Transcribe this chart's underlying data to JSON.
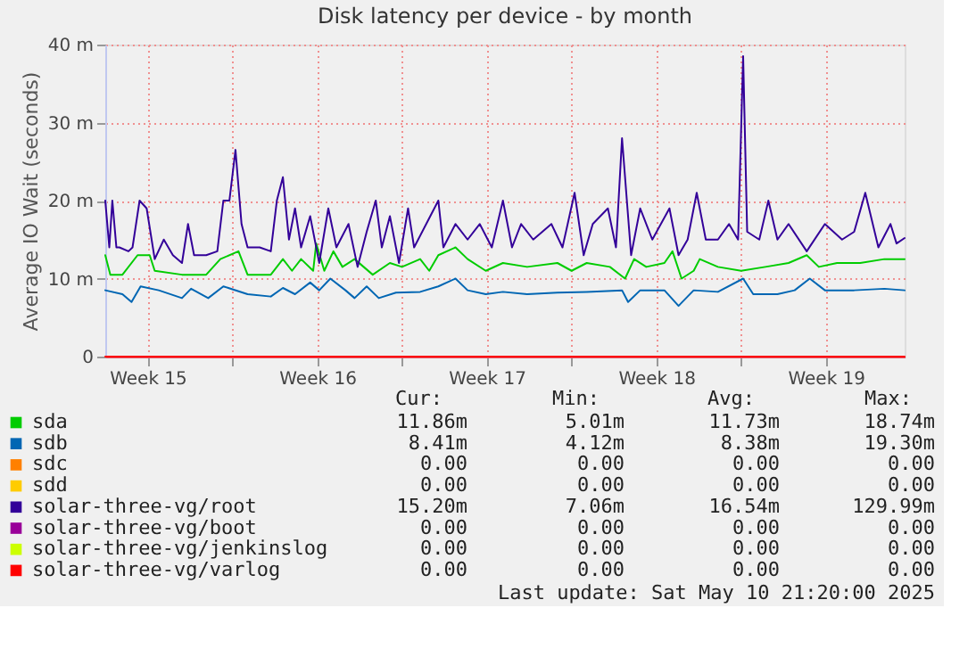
{
  "chart_data": {
    "type": "line",
    "title": "Disk latency per device - by month",
    "ylabel": "Average IO Wait (seconds)",
    "xlim": [
      "2025-04-08T18:00",
      "2025-05-11T18:00"
    ],
    "xticks": [
      {
        "value": "2025-04-10T12:00",
        "label": "Week 15"
      },
      {
        "value": "2025-04-14T00:00",
        "label": null
      },
      {
        "value": "2025-04-17T12:00",
        "label": "Week 16"
      },
      {
        "value": "2025-04-21T00:00",
        "label": null
      },
      {
        "value": "2025-04-24T12:00",
        "label": "Week 17"
      },
      {
        "value": "2025-04-28T00:00",
        "label": null
      },
      {
        "value": "2025-05-01T12:00",
        "label": "Week 18"
      },
      {
        "value": "2025-05-05T00:00",
        "label": null
      },
      {
        "value": "2025-05-08T12:00",
        "label": "Week 19"
      }
    ],
    "ylim": [
      0,
      40
    ],
    "yticks": [
      0,
      {
        "value": 10,
        "label": "10 m"
      },
      {
        "value": 20,
        "label": "20 m"
      },
      {
        "value": 30,
        "label": "30 m"
      },
      {
        "value": 40,
        "label": "40 m"
      }
    ],
    "grid": true,
    "legend": "bottom",
    "line_style": "solid",
    "marker": "none",
    "series": [
      {
        "name": "sda",
        "color": "#00cc00",
        "x": [
          "2025-04-08T18:00",
          "2025-04-08T23:00",
          "2025-04-09T11:00",
          "2025-04-10T02:00",
          "2025-04-10T14:00",
          "2025-04-10T19:00",
          "2025-04-11T22:00",
          "2025-04-12T22:00",
          "2025-04-13T12:00",
          "2025-04-14T06:00",
          "2025-04-14T15:00",
          "2025-04-15T14:00",
          "2025-04-16T02:00",
          "2025-04-16T11:00",
          "2025-04-16T20:00",
          "2025-04-17T08:00",
          "2025-04-17T11:00",
          "2025-04-17T19:00",
          "2025-04-18T04:00",
          "2025-04-18T13:00",
          "2025-04-19T01:00",
          "2025-04-19T19:00",
          "2025-04-20T12:00",
          "2025-04-21T00:00",
          "2025-04-21T18:00",
          "2025-04-22T03:00",
          "2025-04-22T12:00",
          "2025-04-23T05:00",
          "2025-04-23T17:00",
          "2025-04-24T11:00",
          "2025-04-25T04:00",
          "2025-04-26T04:00",
          "2025-04-27T10:00",
          "2025-04-28T00:00",
          "2025-04-28T15:00",
          "2025-04-29T14:00",
          "2025-04-30T05:00",
          "2025-04-30T14:00",
          "2025-05-01T02:00",
          "2025-05-01T20:00",
          "2025-05-02T04:00",
          "2025-05-02T13:00",
          "2025-05-03T01:00",
          "2025-05-03T07:00",
          "2025-05-04T01:00",
          "2025-05-05T00:00",
          "2025-05-06T00:00",
          "2025-05-06T23:00",
          "2025-05-07T17:00",
          "2025-05-08T05:00",
          "2025-05-08T23:00",
          "2025-05-09T22:00",
          "2025-05-10T22:00",
          "2025-05-11T18:00"
        ],
        "values": [
          13,
          10.5,
          10.5,
          13,
          13,
          11,
          10.5,
          10.5,
          12.5,
          13.5,
          10.5,
          10.5,
          12.5,
          11,
          12.5,
          11,
          14.5,
          11,
          13.5,
          11.5,
          12.5,
          10.5,
          12,
          11.5,
          12.5,
          11,
          13,
          14,
          12.5,
          11,
          12,
          11.5,
          12,
          11,
          12,
          11.5,
          10,
          12.5,
          11.5,
          12,
          13.5,
          10,
          11,
          12.5,
          11.5,
          11,
          11.5,
          12,
          13,
          11.5,
          12,
          12,
          12.5,
          12.5
        ]
      },
      {
        "name": "sdb",
        "color": "#0066b3",
        "x": [
          "2025-04-08T18:00",
          "2025-04-09T11:00",
          "2025-04-09T20:00",
          "2025-04-10T05:00",
          "2025-04-10T23:00",
          "2025-04-11T22:00",
          "2025-04-12T07:00",
          "2025-04-13T00:00",
          "2025-04-13T15:00",
          "2025-04-14T15:00",
          "2025-04-15T14:00",
          "2025-04-16T02:00",
          "2025-04-16T14:00",
          "2025-04-17T05:00",
          "2025-04-17T14:00",
          "2025-04-18T01:00",
          "2025-04-18T16:00",
          "2025-04-19T01:00",
          "2025-04-19T13:00",
          "2025-04-20T01:00",
          "2025-04-20T18:00",
          "2025-04-21T18:00",
          "2025-04-22T12:00",
          "2025-04-23T05:00",
          "2025-04-23T17:00",
          "2025-04-24T11:00",
          "2025-04-25T04:00",
          "2025-04-26T04:00",
          "2025-04-27T10:00",
          "2025-04-28T15:00",
          "2025-04-30T02:00",
          "2025-04-30T08:00",
          "2025-04-30T20:00",
          "2025-05-01T20:00",
          "2025-05-02T10:00",
          "2025-05-03T01:00",
          "2025-05-04T01:00",
          "2025-05-05T02:00",
          "2025-05-05T12:00",
          "2025-05-06T12:00",
          "2025-05-07T05:00",
          "2025-05-07T20:00",
          "2025-05-08T11:00",
          "2025-05-09T16:00",
          "2025-05-10T22:00",
          "2025-05-11T18:00"
        ],
        "values": [
          8.5,
          8,
          7,
          9,
          8.5,
          7.5,
          8.7,
          7.5,
          9,
          8,
          7.7,
          8.8,
          8,
          9.5,
          8.5,
          10,
          8.5,
          7.5,
          9,
          7.5,
          8.2,
          8.3,
          9,
          10,
          8.5,
          8,
          8.3,
          8,
          8.2,
          8.3,
          8.5,
          7,
          8.5,
          8.5,
          6.5,
          8.5,
          8.3,
          10,
          8,
          8,
          8.5,
          10,
          8.5,
          8.5,
          8.7,
          8.5
        ]
      },
      {
        "name": "sdc",
        "color": "#ff8000"
      },
      {
        "name": "sdd",
        "color": "#ffcc00"
      },
      {
        "name": "solar-three-vg/root",
        "color": "#330099",
        "x": [
          "2025-04-08T18:00",
          "2025-04-08T22:00",
          "2025-04-09T01:00",
          "2025-04-09T05:00",
          "2025-04-09T08:00",
          "2025-04-09T17:00",
          "2025-04-09T21:00",
          "2025-04-10T04:00",
          "2025-04-10T11:00",
          "2025-04-10T19:00",
          "2025-04-11T04:00",
          "2025-04-11T13:00",
          "2025-04-11T22:00",
          "2025-04-12T04:00",
          "2025-04-12T10:00",
          "2025-04-12T22:00",
          "2025-04-13T09:00",
          "2025-04-13T15:00",
          "2025-04-13T21:00",
          "2025-04-14T03:00",
          "2025-04-14T09:00",
          "2025-04-14T15:00",
          "2025-04-15T03:00",
          "2025-04-15T14:00",
          "2025-04-15T20:00",
          "2025-04-16T02:00",
          "2025-04-16T08:00",
          "2025-04-16T14:00",
          "2025-04-16T20:00",
          "2025-04-17T05:00",
          "2025-04-17T14:00",
          "2025-04-17T23:00",
          "2025-04-18T07:00",
          "2025-04-18T19:00",
          "2025-04-19T04:00",
          "2025-04-19T13:00",
          "2025-04-19T22:00",
          "2025-04-20T04:00",
          "2025-04-20T12:00",
          "2025-04-20T21:00",
          "2025-04-21T06:00",
          "2025-04-21T12:00",
          "2025-04-22T00:00",
          "2025-04-22T12:00",
          "2025-04-22T17:00",
          "2025-04-23T05:00",
          "2025-04-23T17:00",
          "2025-04-24T05:00",
          "2025-04-24T17:00",
          "2025-04-25T04:00",
          "2025-04-25T13:00",
          "2025-04-25T22:00",
          "2025-04-26T10:00",
          "2025-04-27T04:00",
          "2025-04-27T15:00",
          "2025-04-28T03:00",
          "2025-04-28T12:00",
          "2025-04-28T21:00",
          "2025-04-29T12:00",
          "2025-04-29T20:00",
          "2025-04-30T02:00",
          "2025-04-30T11:00",
          "2025-04-30T20:00",
          "2025-05-01T08:00",
          "2025-05-02T01:00",
          "2025-05-02T10:00",
          "2025-05-02T19:00",
          "2025-05-03T04:00",
          "2025-05-03T13:00",
          "2025-05-04T01:00",
          "2025-05-04T12:00",
          "2025-05-04T21:00",
          "2025-05-05T02:00",
          "2025-05-05T06:00",
          "2025-05-05T18:00",
          "2025-05-06T03:00",
          "2025-05-06T12:00",
          "2025-05-06T23:00",
          "2025-05-07T17:00",
          "2025-05-08T11:00",
          "2025-05-09T04:00",
          "2025-05-09T16:00",
          "2025-05-10T03:00",
          "2025-05-10T16:00",
          "2025-05-11T04:00",
          "2025-05-11T10:00",
          "2025-05-11T18:00"
        ],
        "values": [
          20,
          14,
          20,
          14,
          14,
          13.5,
          14,
          20,
          19,
          12.5,
          15,
          13,
          12,
          17,
          13,
          13,
          13.5,
          20,
          20,
          26.5,
          17,
          14,
          14,
          13.5,
          20,
          23,
          15,
          19,
          14,
          18,
          12,
          19,
          14,
          17,
          11.5,
          16,
          20,
          14,
          18,
          12,
          19,
          14,
          17,
          20,
          14,
          17,
          15,
          17,
          14,
          20,
          14,
          17,
          15,
          17,
          14,
          21,
          13,
          17,
          19,
          14,
          28,
          13,
          19,
          15,
          19,
          13,
          15,
          21,
          15,
          15,
          17,
          15,
          38.5,
          16,
          15,
          20,
          15,
          17,
          13.5,
          17,
          15,
          16,
          21,
          14,
          17,
          14.5,
          15.2
        ]
      },
      {
        "name": "solar-three-vg/boot",
        "color": "#990099"
      },
      {
        "name": "solar-three-vg/jenkinslog",
        "color": "#ccff00"
      },
      {
        "name": "solar-three-vg/varlog",
        "color": "#ff0000",
        "x": [
          "2025-04-08T18:00",
          "2025-05-11T18:00"
        ],
        "values": [
          0,
          0
        ]
      }
    ],
    "annotations": [
      "Cur:",
      "Min:",
      "Avg:",
      "Max:",
      "11.86m",
      "5.01m",
      "11.73m",
      "18.74m",
      "8.41m",
      "4.12m",
      "8.38m",
      "19.30m",
      "0.00",
      "0.00",
      "0.00",
      "0.00",
      "0.00",
      "0.00",
      "0.00",
      "0.00",
      "15.20m",
      "7.06m",
      "16.54m",
      "129.99m",
      "0.00",
      "0.00",
      "0.00",
      "0.00",
      "0.00",
      "0.00",
      "0.00",
      "0.00",
      "0.00",
      "0.00",
      "0.00",
      "0.00",
      "Last update:  Sat May 10 21:20:00 2025"
    ]
  }
}
